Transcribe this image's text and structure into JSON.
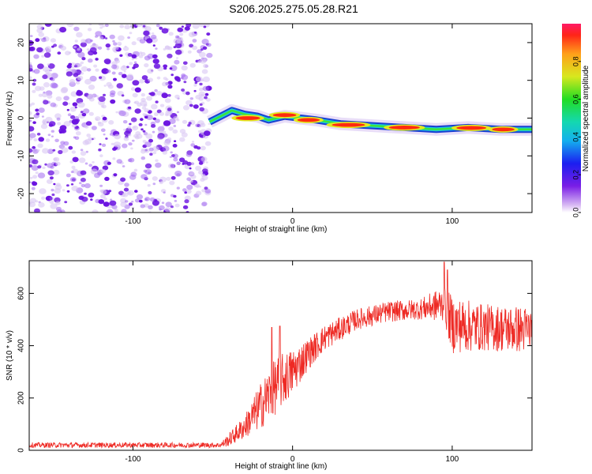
{
  "title": "S206.2025.275.05.28.R21",
  "colors": {
    "axis": "#000000",
    "snr_line": "#ee2a24",
    "noise": "#6a12e0",
    "noise_light": "#d8c6f4",
    "ridge_outer": "#1a3fd0",
    "ridge_mid": "#19c8e0",
    "ridge_inner": "#3ee33a",
    "ridge_core": "#ff2a10"
  },
  "chart_data": [
    {
      "type": "heatmap",
      "xlabel": "Height of straight line (km)",
      "ylabel": "Frequency (Hz)",
      "xlim": [
        -165,
        150
      ],
      "ylim": [
        -25,
        25
      ],
      "xticks": [
        -100,
        0,
        100
      ],
      "yticks": [
        -20,
        -10,
        0,
        10,
        20
      ],
      "noise_region_x": [
        -165,
        -52
      ],
      "ridge_centerline": [
        {
          "x": -52,
          "y": -1.0
        },
        {
          "x": -45,
          "y": 0.5
        },
        {
          "x": -38,
          "y": 2.0
        },
        {
          "x": -30,
          "y": 1.0
        },
        {
          "x": -22,
          "y": 0.5
        },
        {
          "x": -15,
          "y": -0.5
        },
        {
          "x": -5,
          "y": 0.5
        },
        {
          "x": 5,
          "y": 0.0
        },
        {
          "x": 15,
          "y": -0.5
        },
        {
          "x": 30,
          "y": -1.5
        },
        {
          "x": 50,
          "y": -2.0
        },
        {
          "x": 70,
          "y": -2.5
        },
        {
          "x": 90,
          "y": -3.0
        },
        {
          "x": 110,
          "y": -2.5
        },
        {
          "x": 130,
          "y": -3.0
        },
        {
          "x": 150,
          "y": -3.0
        }
      ],
      "ridge_peaks": [
        {
          "x": 35,
          "y": -1.8,
          "amplitude": 1.0
        },
        {
          "x": 70,
          "y": -2.5,
          "amplitude": 0.9
        },
        {
          "x": 112,
          "y": -2.6,
          "amplitude": 0.85
        },
        {
          "x": 132,
          "y": -3.0,
          "amplitude": 0.5
        },
        {
          "x": -28,
          "y": 0.0,
          "amplitude": 0.6
        },
        {
          "x": -5,
          "y": 0.8,
          "amplitude": 0.55
        },
        {
          "x": 10,
          "y": -0.5,
          "amplitude": 0.5
        }
      ],
      "colorbar": {
        "label": "Normalized spectral amplitude",
        "range": [
          0,
          1
        ],
        "ticks": [
          "0.0",
          "0.2",
          "0.4",
          "0.6",
          "0.8"
        ]
      }
    },
    {
      "type": "line",
      "xlabel": "Height of straight line (km)",
      "ylabel": "SNR (10 * v/v)",
      "xlim": [
        -165,
        150
      ],
      "ylim": [
        0,
        725
      ],
      "xticks": [
        -100,
        0,
        100
      ],
      "yticks": [
        0,
        200,
        400,
        600
      ],
      "series": [
        {
          "name": "SNR",
          "envelope": [
            {
              "x": -165,
              "mean": 20,
              "spread": 10
            },
            {
              "x": -45,
              "mean": 20,
              "spread": 10
            },
            {
              "x": -40,
              "mean": 40,
              "spread": 25
            },
            {
              "x": -30,
              "mean": 90,
              "spread": 45
            },
            {
              "x": -20,
              "mean": 170,
              "spread": 90
            },
            {
              "x": -10,
              "mean": 250,
              "spread": 110
            },
            {
              "x": 0,
              "mean": 300,
              "spread": 90
            },
            {
              "x": 10,
              "mean": 370,
              "spread": 60
            },
            {
              "x": 20,
              "mean": 430,
              "spread": 50
            },
            {
              "x": 40,
              "mean": 500,
              "spread": 40
            },
            {
              "x": 60,
              "mean": 530,
              "spread": 40
            },
            {
              "x": 80,
              "mean": 540,
              "spread": 40
            },
            {
              "x": 95,
              "mean": 560,
              "spread": 70
            },
            {
              "x": 100,
              "mean": 480,
              "spread": 110
            },
            {
              "x": 120,
              "mean": 470,
              "spread": 90
            },
            {
              "x": 150,
              "mean": 460,
              "spread": 90
            }
          ],
          "spikes": [
            {
              "x": -13,
              "value": 470
            },
            {
              "x": -8,
              "value": 475
            },
            {
              "x": 95,
              "value": 720
            },
            {
              "x": 97,
              "value": 690
            }
          ]
        }
      ]
    }
  ]
}
